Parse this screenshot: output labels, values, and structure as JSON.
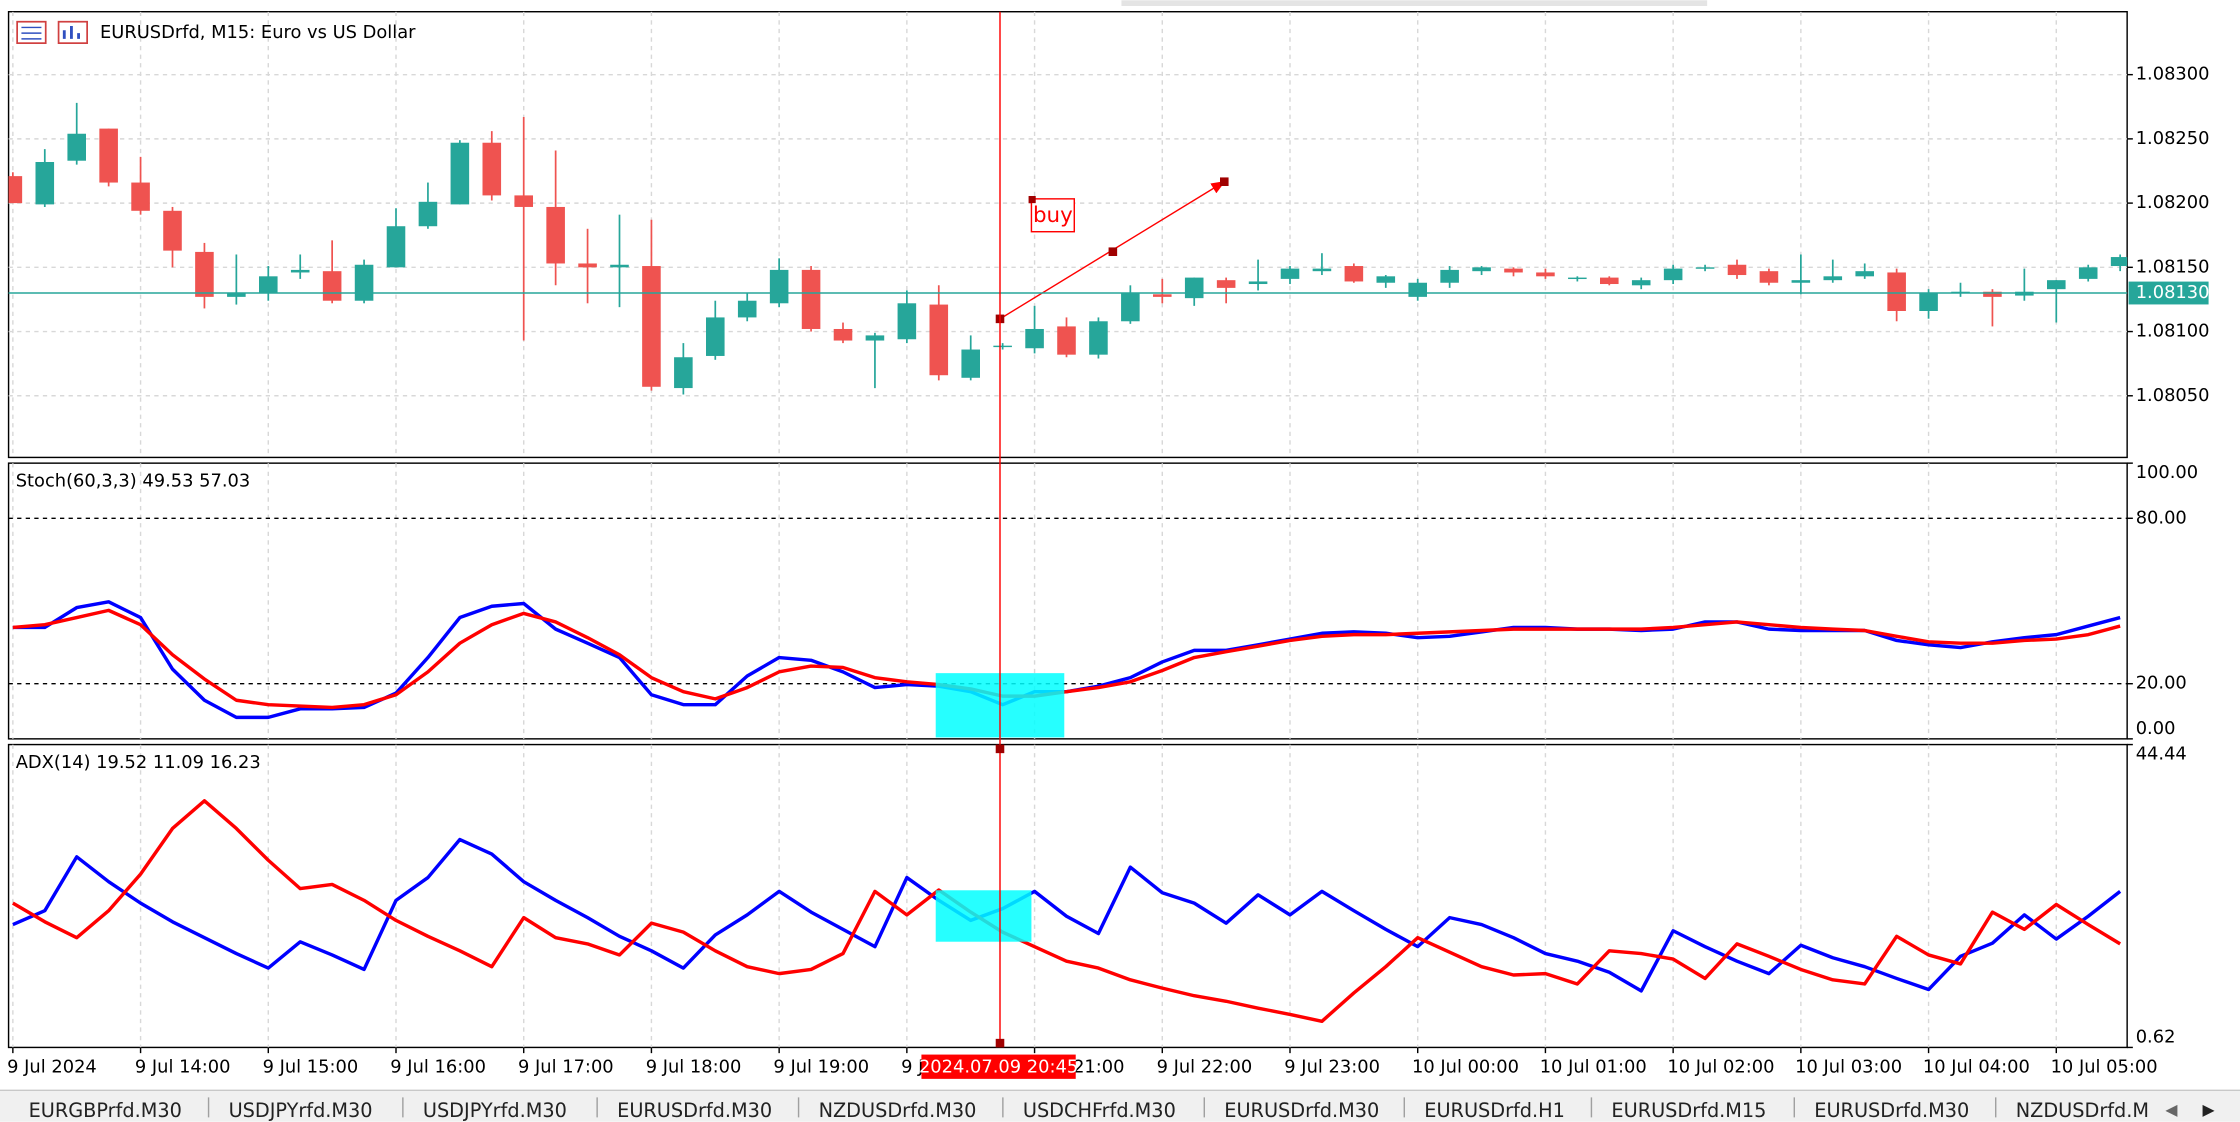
{
  "window": {
    "title": "EURUSDrfd, M15:  Euro vs US Dollar"
  },
  "xticks": [
    {
      "value": 0,
      "label": "9 Jul 2024"
    },
    {
      "value": 4,
      "label": "9 Jul 14:00"
    },
    {
      "value": 8,
      "label": "9 Jul 15:00"
    },
    {
      "value": 12,
      "label": "9 Jul 16:00"
    },
    {
      "value": 16,
      "label": "9 Jul 17:00"
    },
    {
      "value": 20,
      "label": "9 Jul 18:00"
    },
    {
      "value": 24,
      "label": "9 Jul 19:00"
    },
    {
      "value": 28,
      "label": "9 Jul 20:00"
    },
    {
      "value": 32,
      "label": "9 Jul 21:00"
    },
    {
      "value": 36,
      "label": "9 Jul 22:00"
    },
    {
      "value": 40,
      "label": "9 Jul 23:00"
    },
    {
      "value": 44,
      "label": "10 Jul 00:00"
    },
    {
      "value": 48,
      "label": "10 Jul 01:00"
    },
    {
      "value": 52,
      "label": "10 Jul 02:00"
    },
    {
      "value": 56,
      "label": "10 Jul 03:00"
    },
    {
      "value": 60,
      "label": "10 Jul 04:00"
    },
    {
      "value": 64,
      "label": "10 Jul 05:00"
    }
  ],
  "crosshair": {
    "label": "2024.07.09 20:45"
  },
  "tabs": [
    "EURGBPrfd.M30",
    "USDJPYrfd.M30",
    "USDJPYrfd.M30",
    "EURUSDrfd.M30",
    "NZDUSDrfd.M30",
    "USDCHFrfd.M30",
    "EURUSDrfd.M30",
    "EURUSDrfd.H1",
    "EURUSDrfd.M15",
    "EURUSDrfd.M30",
    "NZDUSDrfd.M"
  ],
  "chart_data": [
    {
      "type": "candlestick",
      "open": [
        1.08221,
        1.08199,
        1.08233,
        1.08258,
        1.08216,
        1.08194,
        1.08162,
        1.08127,
        1.0813,
        1.08146,
        1.08147,
        1.08124,
        1.0815,
        1.08182,
        1.08199,
        1.08247,
        1.08206,
        1.08197,
        1.08153,
        1.0815,
        1.08151,
        1.08056,
        1.08081,
        1.08111,
        1.08122,
        1.08148,
        1.08102,
        1.08093,
        1.08094,
        1.08121,
        1.08064,
        1.08088,
        1.08087,
        1.08104,
        1.08082,
        1.08108,
        1.08129,
        1.08126,
        1.0814,
        1.08137,
        1.08141,
        1.08147,
        1.08151,
        1.08138,
        1.08127,
        1.08138,
        1.08147,
        1.08149,
        1.08146,
        1.08141,
        1.08142,
        1.08136,
        1.0814,
        1.08149,
        1.08152,
        1.08147,
        1.08138,
        1.0814,
        1.08143,
        1.08146,
        1.08116,
        1.0813,
        1.08131,
        1.08128,
        1.08133,
        1.08141,
        1.08151
      ],
      "high": [
        1.08224,
        1.08242,
        1.08278,
        1.08258,
        1.08236,
        1.08197,
        1.08169,
        1.0816,
        1.08151,
        1.0816,
        1.08171,
        1.08156,
        1.08196,
        1.08216,
        1.08249,
        1.08256,
        1.08267,
        1.08241,
        1.0818,
        1.08191,
        1.08187,
        1.08091,
        1.08124,
        1.0813,
        1.08157,
        1.08151,
        1.08107,
        1.08099,
        1.08132,
        1.08136,
        1.08097,
        1.08091,
        1.0812,
        1.08111,
        1.08111,
        1.08136,
        1.08141,
        1.08142,
        1.08142,
        1.08156,
        1.08151,
        1.08161,
        1.08153,
        1.08144,
        1.08141,
        1.08151,
        1.08151,
        1.0815,
        1.08149,
        1.08143,
        1.08143,
        1.08142,
        1.08152,
        1.08152,
        1.08156,
        1.08149,
        1.0816,
        1.08156,
        1.08153,
        1.08149,
        1.08133,
        1.08138,
        1.08133,
        1.08149,
        1.0814,
        1.08152,
        1.0816
      ],
      "low": [
        1.082,
        1.08197,
        1.0823,
        1.08213,
        1.08191,
        1.0815,
        1.08118,
        1.08121,
        1.08124,
        1.08141,
        1.08122,
        1.08122,
        1.0815,
        1.0818,
        1.08199,
        1.08202,
        1.08093,
        1.08136,
        1.08122,
        1.08119,
        1.08054,
        1.08051,
        1.08078,
        1.08108,
        1.08119,
        1.081,
        1.08091,
        1.08056,
        1.08091,
        1.08062,
        1.08062,
        1.08086,
        1.08083,
        1.0808,
        1.08079,
        1.08106,
        1.08122,
        1.0812,
        1.08122,
        1.08132,
        1.08137,
        1.08144,
        1.08138,
        1.08134,
        1.08124,
        1.08134,
        1.08144,
        1.08143,
        1.08141,
        1.08139,
        1.08136,
        1.08133,
        1.08137,
        1.08147,
        1.08141,
        1.08136,
        1.08129,
        1.08138,
        1.08141,
        1.08108,
        1.0811,
        1.08127,
        1.08104,
        1.08124,
        1.08107,
        1.08139,
        1.08147
      ],
      "close": [
        1.082,
        1.08232,
        1.08254,
        1.08216,
        1.08194,
        1.08163,
        1.08127,
        1.0813,
        1.08143,
        1.08148,
        1.08124,
        1.08152,
        1.08182,
        1.08201,
        1.08247,
        1.08206,
        1.08197,
        1.08153,
        1.0815,
        1.08152,
        1.08057,
        1.0808,
        1.08111,
        1.08124,
        1.08148,
        1.08102,
        1.08093,
        1.08097,
        1.08122,
        1.08066,
        1.08086,
        1.08089,
        1.08102,
        1.08082,
        1.08108,
        1.0813,
        1.08127,
        1.08142,
        1.08134,
        1.08139,
        1.08149,
        1.08149,
        1.08139,
        1.08143,
        1.08138,
        1.08148,
        1.0815,
        1.08146,
        1.08143,
        1.08142,
        1.08137,
        1.0814,
        1.08149,
        1.0815,
        1.08144,
        1.08138,
        1.0814,
        1.08143,
        1.08147,
        1.08116,
        1.0813,
        1.08131,
        1.08127,
        1.08131,
        1.0814,
        1.0815,
        1.08158
      ],
      "up_color": "#26a69a",
      "down_color": "#ef5350",
      "ylim": [
        1.08002,
        1.08349
      ],
      "yticks": [
        {
          "value": 1.083,
          "label": "1.08300"
        },
        {
          "value": 1.0825,
          "label": "1.08250"
        },
        {
          "value": 1.082,
          "label": "1.08200"
        },
        {
          "value": 1.0815,
          "label": "1.08150"
        },
        {
          "value": 1.081,
          "label": "1.08100"
        },
        {
          "value": 1.0805,
          "label": "1.08050"
        }
      ],
      "grid": true,
      "current_price": {
        "value": 1.0813,
        "label": "1.08130"
      },
      "annotations": [
        {
          "text": "buy"
        }
      ]
    },
    {
      "type": "line",
      "title": "Stoch(60,3,3) 49.53 57.03",
      "series": [
        {
          "color": "#0000ff",
          "values": [
            40.4,
            40.4,
            47.6,
            49.7,
            44.0,
            25.3,
            14.0,
            7.8,
            7.8,
            10.9,
            10.9,
            11.4,
            16.6,
            29.5,
            44.0,
            48.1,
            49.1,
            39.8,
            34.7,
            29.5,
            16.0,
            12.4,
            12.4,
            22.8,
            29.5,
            28.5,
            24.3,
            18.6,
            19.7,
            19.1,
            17.1,
            12.4,
            17.1,
            17.1,
            19.1,
            22.2,
            27.9,
            32.1,
            32.1,
            34.1,
            36.2,
            38.3,
            38.8,
            38.3,
            36.7,
            37.2,
            38.8,
            40.4,
            40.4,
            39.8,
            39.8,
            39.3,
            39.8,
            42.4,
            42.4,
            39.8,
            39.3,
            39.3,
            39.3,
            35.7,
            34.1,
            33.1,
            35.2,
            36.7,
            37.8,
            40.9,
            44.0
          ]
        },
        {
          "color": "#ff0000",
          "values": [
            40.4,
            41.4,
            44.0,
            46.6,
            41.4,
            30.5,
            21.7,
            14.0,
            12.4,
            11.9,
            11.4,
            12.4,
            16.0,
            24.3,
            34.7,
            41.4,
            45.5,
            42.4,
            36.7,
            30.5,
            22.2,
            17.1,
            14.5,
            18.6,
            24.3,
            26.4,
            25.9,
            22.2,
            20.7,
            19.7,
            18.1,
            15.5,
            15.5,
            17.1,
            18.6,
            20.7,
            24.8,
            29.5,
            31.6,
            33.6,
            35.7,
            37.2,
            37.8,
            37.8,
            38.3,
            38.8,
            39.3,
            39.8,
            39.8,
            39.8,
            39.8,
            39.8,
            40.4,
            41.4,
            42.4,
            41.4,
            40.4,
            39.8,
            39.3,
            37.2,
            35.2,
            34.7,
            34.7,
            35.7,
            36.2,
            37.8,
            40.9
          ]
        }
      ],
      "ylim": [
        0,
        100
      ],
      "yticks": [
        {
          "value": 100,
          "label": "100.00"
        },
        {
          "value": 80,
          "label": "80.00"
        },
        {
          "value": 20,
          "label": "20.00"
        },
        {
          "value": 0,
          "label": "0.00"
        }
      ],
      "levels": true
    },
    {
      "type": "line",
      "title": "ADX(14) 19.52 11.09 16.23",
      "series": [
        {
          "color": "#0000ff",
          "values": [
            18.4,
            20.4,
            28.2,
            24.6,
            21.5,
            18.8,
            16.5,
            14.2,
            12.1,
            15.9,
            14.0,
            11.9,
            21.9,
            25.2,
            30.7,
            28.6,
            24.6,
            21.9,
            19.4,
            16.7,
            14.6,
            12.1,
            16.9,
            19.8,
            23.2,
            20.2,
            17.7,
            15.2,
            25.2,
            21.9,
            19.0,
            20.7,
            23.2,
            19.6,
            17.1,
            26.7,
            23.0,
            21.5,
            18.6,
            22.7,
            19.8,
            23.2,
            20.4,
            17.7,
            15.2,
            19.4,
            18.4,
            16.5,
            14.2,
            13.1,
            11.5,
            8.8,
            17.5,
            15.2,
            13.1,
            11.3,
            15.4,
            13.6,
            12.3,
            10.6,
            9.0,
            13.8,
            15.7,
            19.8,
            16.3,
            19.6,
            23.2
          ]
        },
        {
          "color": "#ff0000",
          "values": [
            21.5,
            18.8,
            16.5,
            20.4,
            25.7,
            32.3,
            36.3,
            32.3,
            27.7,
            23.6,
            24.2,
            21.9,
            19.0,
            16.7,
            14.6,
            12.3,
            19.4,
            16.5,
            15.6,
            14.0,
            18.6,
            17.3,
            14.6,
            12.3,
            11.3,
            11.9,
            14.2,
            23.2,
            19.8,
            23.4,
            20.2,
            17.3,
            15.2,
            13.1,
            12.1,
            10.4,
            9.2,
            8.1,
            7.3,
            6.3,
            5.4,
            4.4,
            8.5,
            12.3,
            16.5,
            14.4,
            12.3,
            11.1,
            11.3,
            9.8,
            14.6,
            14.2,
            13.4,
            10.6,
            15.6,
            13.8,
            11.9,
            10.4,
            9.8,
            16.7,
            14.0,
            12.7,
            20.2,
            17.7,
            21.3,
            18.4,
            15.6
          ]
        }
      ],
      "ylim": [
        0.62,
        44.44
      ],
      "yticks": [
        44.44,
        0.62
      ]
    }
  ]
}
